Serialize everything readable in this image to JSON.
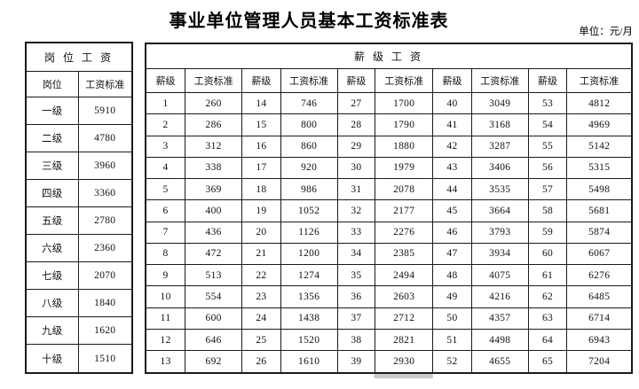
{
  "page": {
    "title": "事业单位管理人员基本工资标准表",
    "unit_label": "单位：元/月"
  },
  "position_table": {
    "header": "岗 位 工 资",
    "col_headers": [
      "岗位",
      "工资标准"
    ],
    "rows": [
      [
        "一级",
        "5910"
      ],
      [
        "二级",
        "4780"
      ],
      [
        "三级",
        "3960"
      ],
      [
        "四级",
        "3360"
      ],
      [
        "五级",
        "2780"
      ],
      [
        "六级",
        "2360"
      ],
      [
        "七级",
        "2070"
      ],
      [
        "八级",
        "1840"
      ],
      [
        "九级",
        "1620"
      ],
      [
        "十级",
        "1510"
      ]
    ]
  },
  "grade_table": {
    "header": "薪  级  工  资",
    "col_headers": [
      "薪级",
      "工资标准"
    ],
    "rows": [
      [
        "1",
        "260",
        "14",
        "746",
        "27",
        "1700",
        "40",
        "3049",
        "53",
        "4812"
      ],
      [
        "2",
        "286",
        "15",
        "800",
        "28",
        "1790",
        "41",
        "3168",
        "54",
        "4969"
      ],
      [
        "3",
        "312",
        "16",
        "860",
        "29",
        "1880",
        "42",
        "3287",
        "55",
        "5142"
      ],
      [
        "4",
        "338",
        "17",
        "920",
        "30",
        "1979",
        "43",
        "3406",
        "56",
        "5315"
      ],
      [
        "5",
        "369",
        "18",
        "986",
        "31",
        "2078",
        "44",
        "3535",
        "57",
        "5498"
      ],
      [
        "6",
        "400",
        "19",
        "1052",
        "32",
        "2177",
        "45",
        "3664",
        "58",
        "5681"
      ],
      [
        "7",
        "436",
        "20",
        "1126",
        "33",
        "2276",
        "46",
        "3793",
        "59",
        "5874"
      ],
      [
        "8",
        "472",
        "21",
        "1200",
        "34",
        "2385",
        "47",
        "3934",
        "60",
        "6067"
      ],
      [
        "9",
        "513",
        "22",
        "1274",
        "35",
        "2494",
        "48",
        "4075",
        "61",
        "6276"
      ],
      [
        "10",
        "554",
        "23",
        "1356",
        "36",
        "2603",
        "49",
        "4216",
        "62",
        "6485"
      ],
      [
        "11",
        "600",
        "24",
        "1438",
        "37",
        "2712",
        "50",
        "4357",
        "63",
        "6714"
      ],
      [
        "12",
        "646",
        "25",
        "1520",
        "38",
        "2821",
        "51",
        "4498",
        "64",
        "6943"
      ],
      [
        "13",
        "692",
        "26",
        "1610",
        "39",
        "2930",
        "52",
        "4655",
        "65",
        "7204"
      ]
    ]
  },
  "colors": {
    "border": "#1a1a1a",
    "text": "#111111",
    "scrollbar_thumb": "#c9c9c9"
  }
}
